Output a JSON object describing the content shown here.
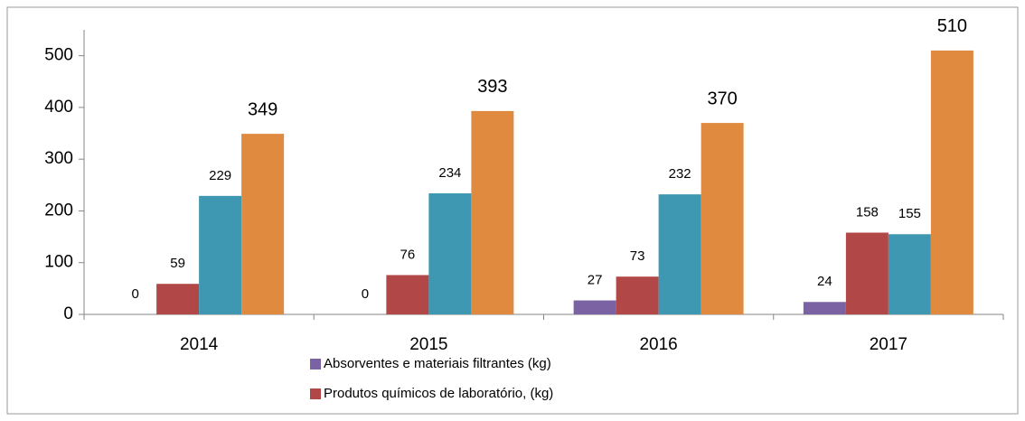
{
  "chart_data": {
    "type": "bar",
    "categories": [
      "2014",
      "2015",
      "2016",
      "2017"
    ],
    "series": [
      {
        "name": "Absorventes e materiais filtrantes (kg)",
        "color": "#7a62a3",
        "values": [
          0,
          0,
          27,
          24
        ]
      },
      {
        "name": "Produtos químicos de laboratório,  (kg)",
        "color": "#b14747",
        "values": [
          59,
          76,
          73,
          158
        ]
      },
      {
        "color": "#3f98b1",
        "values": [
          229,
          234,
          232,
          155
        ]
      },
      {
        "color": "#e08a40",
        "values": [
          349,
          393,
          370,
          510
        ]
      }
    ],
    "ylim": [
      0,
      550
    ],
    "yticks": [
      0,
      100,
      200,
      300,
      400,
      500
    ],
    "grid": false
  }
}
